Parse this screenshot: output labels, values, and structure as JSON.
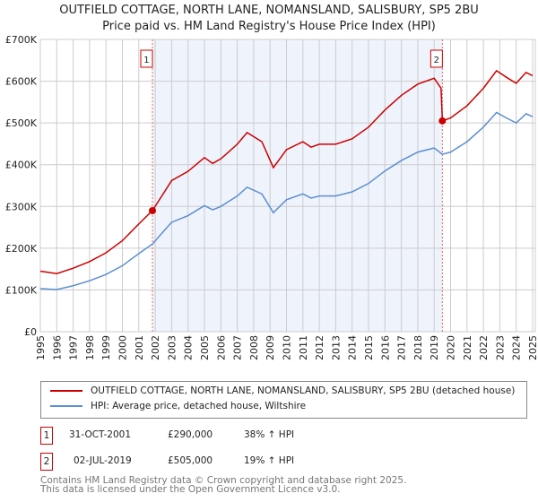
{
  "chart_data": {
    "type": "line",
    "title": "OUTFIELD COTTAGE, NORTH LANE, NOMANSLAND, SALISBURY, SP5 2BU",
    "subtitle": "Price paid vs. HM Land Registry's House Price Index (HPI)",
    "xlim": [
      1995,
      2025.2
    ],
    "ylim": [
      0,
      700000
    ],
    "y_ticks": [
      {
        "v": 0,
        "label": "£0"
      },
      {
        "v": 100000,
        "label": "£100K"
      },
      {
        "v": 200000,
        "label": "£200K"
      },
      {
        "v": 300000,
        "label": "£300K"
      },
      {
        "v": 400000,
        "label": "£400K"
      },
      {
        "v": 500000,
        "label": "£500K"
      },
      {
        "v": 600000,
        "label": "£600K"
      },
      {
        "v": 700000,
        "label": "£700K"
      }
    ],
    "x_ticks": [
      "1995",
      "1996",
      "1997",
      "1998",
      "1999",
      "2000",
      "2001",
      "2002",
      "2003",
      "2004",
      "2005",
      "2006",
      "2007",
      "2008",
      "2009",
      "2010",
      "2011",
      "2012",
      "2013",
      "2014",
      "2015",
      "2016",
      "2017",
      "2018",
      "2019",
      "2020",
      "2021",
      "2022",
      "2023",
      "2024",
      "2025"
    ],
    "grid": true,
    "shaded_range": [
      2001.83,
      2019.5
    ],
    "series": [
      {
        "name": "OUTFIELD COTTAGE, NORTH LANE, NOMANSLAND, SALISBURY, SP5 2BU (detached house)",
        "color": "#cc0000",
        "x": [
          1995,
          1996,
          1997,
          1998,
          1999,
          2000,
          2001,
          2001.83,
          2002.5,
          2003,
          2004,
          2005,
          2005.5,
          2006,
          2007,
          2007.6,
          2008.5,
          2009.2,
          2010,
          2011,
          2011.5,
          2012,
          2013,
          2014,
          2015,
          2016,
          2017,
          2018,
          2019,
          2019.42,
          2019.5,
          2020,
          2021,
          2022,
          2022.8,
          2023.5,
          2024,
          2024.6,
          2025
        ],
        "y": [
          145000,
          139000,
          152000,
          168000,
          189000,
          218000,
          258000,
          290000,
          331000,
          362000,
          384000,
          417000,
          403000,
          414000,
          449000,
          477000,
          455000,
          393000,
          436000,
          455000,
          442000,
          449000,
          449000,
          462000,
          490000,
          531000,
          566000,
          593000,
          607000,
          583000,
          505000,
          512000,
          541000,
          583000,
          625000,
          607000,
          595000,
          621000,
          613000
        ]
      },
      {
        "name": "HPI: Average price, detached house, Wiltshire",
        "color": "#5b8fd0",
        "x": [
          1995,
          1996,
          1997,
          1998,
          1999,
          2000,
          2001,
          2001.83,
          2002.5,
          2003,
          2004,
          2005,
          2005.5,
          2006,
          2007,
          2007.6,
          2008.5,
          2009.2,
          2010,
          2011,
          2011.5,
          2012,
          2013,
          2014,
          2015,
          2016,
          2017,
          2018,
          2019,
          2019.5,
          2020,
          2021,
          2022,
          2022.8,
          2023.5,
          2024,
          2024.6,
          2025
        ],
        "y": [
          103000,
          101000,
          110000,
          122000,
          137000,
          158000,
          187000,
          210000,
          240000,
          262000,
          278000,
          302000,
          292000,
          300000,
          325000,
          346000,
          330000,
          285000,
          316000,
          330000,
          320000,
          325000,
          325000,
          335000,
          355000,
          385000,
          410000,
          430000,
          440000,
          425000,
          430000,
          455000,
          490000,
          525000,
          510000,
          500000,
          522000,
          515000
        ]
      }
    ],
    "annotations": [
      {
        "label": "1",
        "x": 2001.83,
        "y": 290000
      },
      {
        "label": "2",
        "x": 2019.5,
        "y": 505000
      }
    ],
    "legend": "bottom"
  },
  "sales": [
    {
      "num": "1",
      "date": "31-OCT-2001",
      "price": "£290,000",
      "hpi": "38% ↑ HPI"
    },
    {
      "num": "2",
      "date": "02-JUL-2019",
      "price": "£505,000",
      "hpi": "19% ↑ HPI"
    }
  ],
  "footer": {
    "line1": "Contains HM Land Registry data © Crown copyright and database right 2025.",
    "line2": "This data is licensed under the Open Government Licence v3.0."
  }
}
